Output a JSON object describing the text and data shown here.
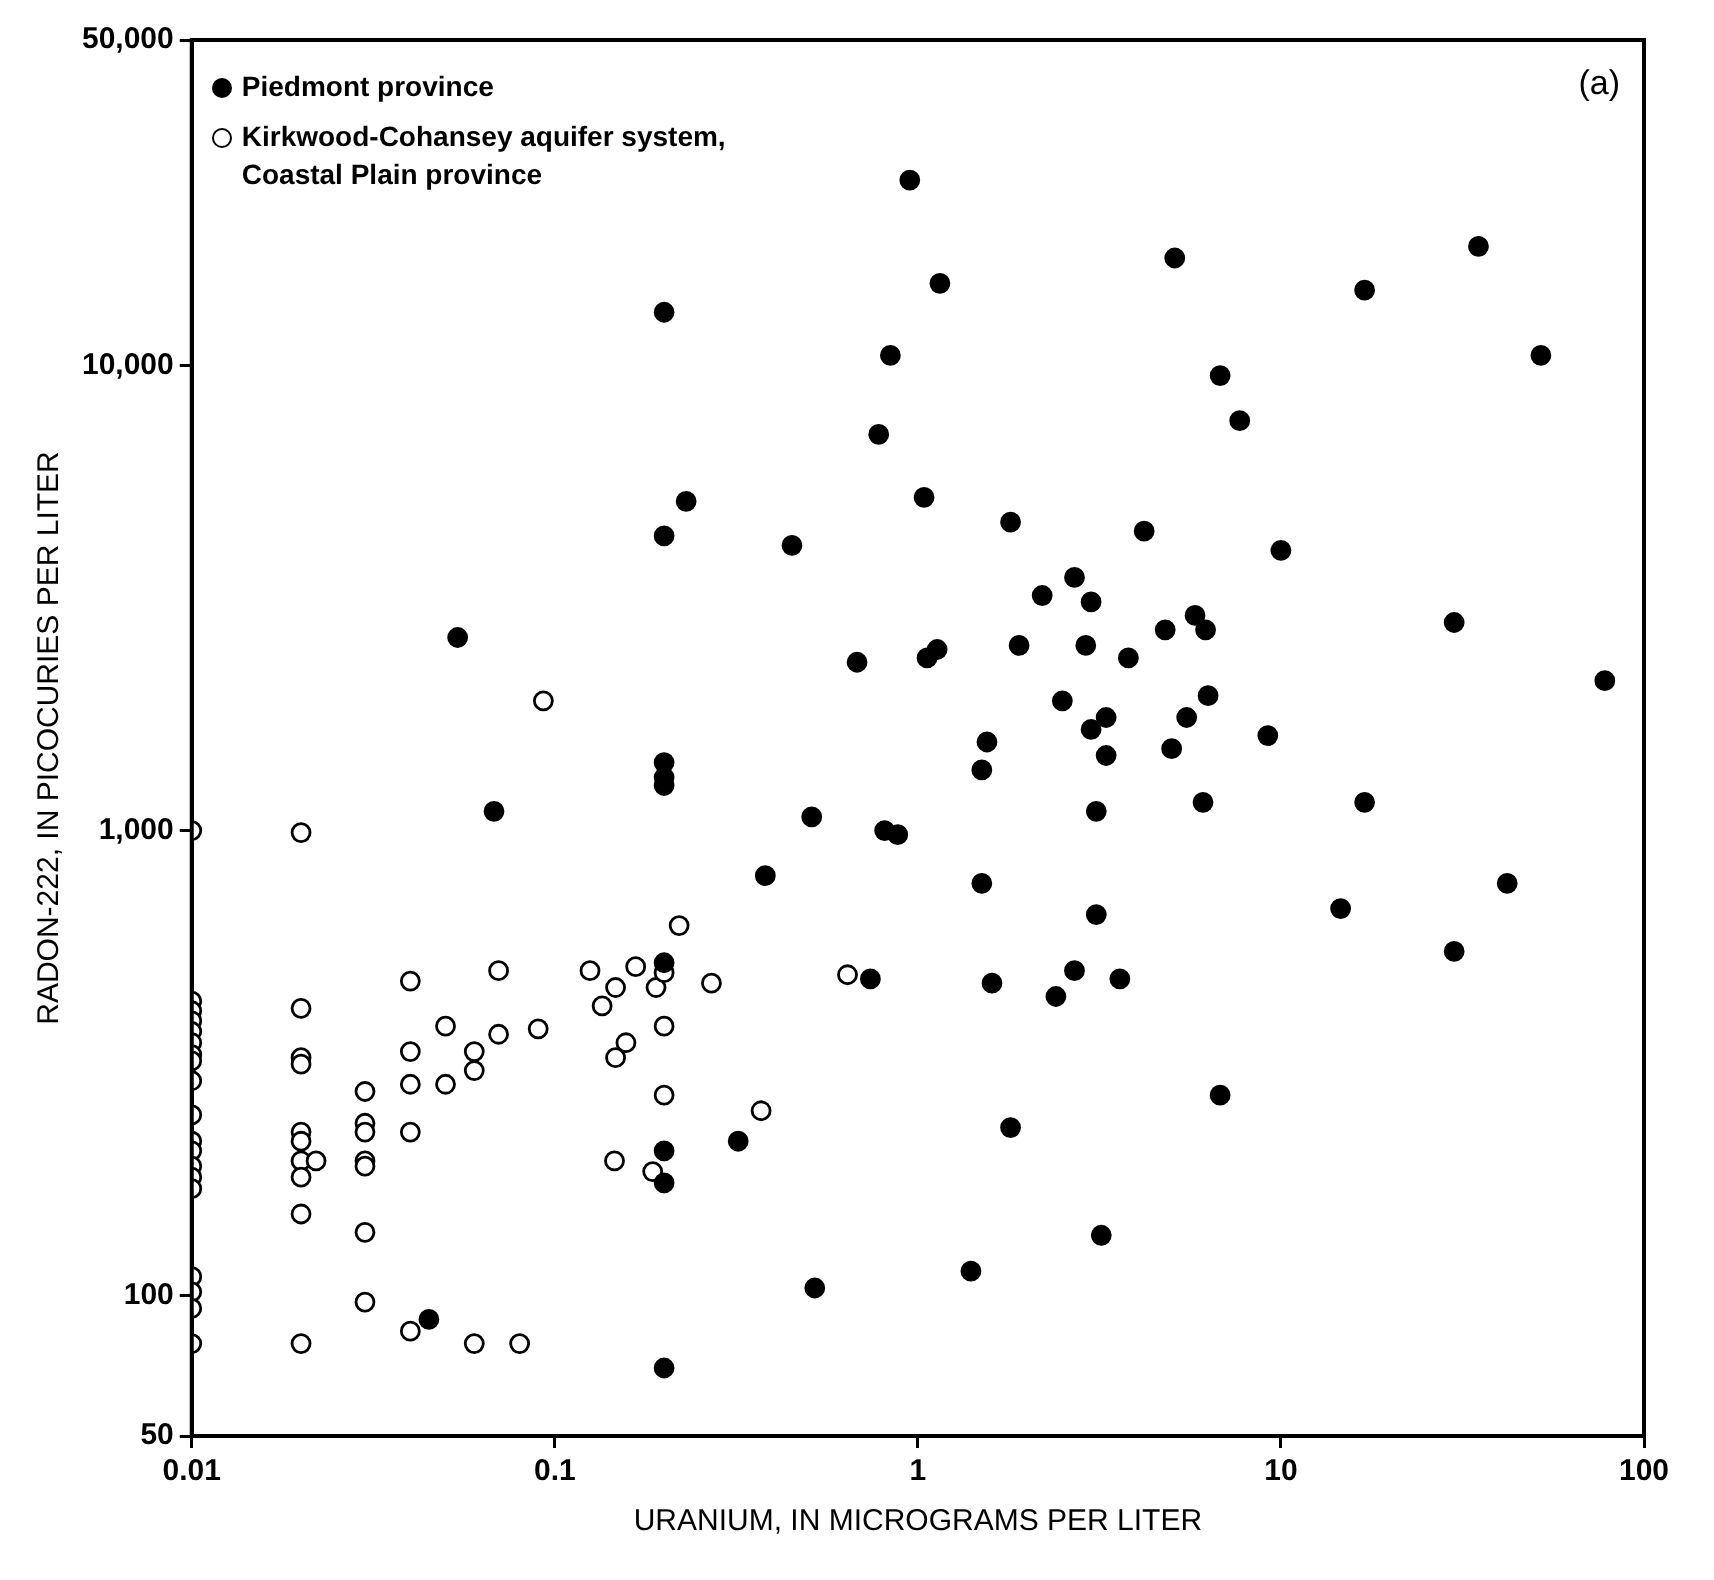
{
  "chart_data": {
    "type": "scatter",
    "xlabel": "URANIUM, IN MICROGRAMS PER LITER",
    "ylabel": "RADON-222, IN PICOCURIES PER LITER",
    "annotations": [
      "(a)"
    ],
    "log": "xy",
    "grid": false,
    "legend": "top left",
    "marker": "circle",
    "xlim": [
      0.01,
      100
    ],
    "xticks": [
      0.01,
      0.1,
      1,
      10,
      100
    ],
    "ylim": [
      50,
      50000
    ],
    "yticks": [
      50,
      100,
      {
        "value": 1000,
        "label": "1,000"
      },
      {
        "value": 10000,
        "label": "10,000"
      },
      {
        "value": 50000,
        "label": "50,000"
      }
    ],
    "series": [
      {
        "name": "Piedmont province",
        "color": "#000000",
        "x": [
          0.2,
          0.23,
          0.2,
          0.45,
          0.054,
          0.68,
          0.2,
          0.2,
          0.2,
          0.95,
          5.1,
          35,
          1.15,
          17,
          0.84,
          52,
          6.8,
          7.7,
          0.78,
          1.04,
          1.8,
          4.2,
          10,
          2.7,
          2.2,
          3,
          30,
          5.8,
          4.8,
          6.2,
          1.06,
          1.13,
          1.9,
          2.9,
          3.8,
          78,
          2.5,
          3.3,
          3,
          6.3,
          5.5,
          9.2,
          1.55,
          1.5,
          3.3,
          5,
          6.1,
          17,
          3.1,
          0.81,
          0.88,
          1.5,
          42,
          14.6,
          3.1,
          30,
          0.74,
          2.7,
          3.6,
          1.6,
          2.4,
          6.8,
          1.8,
          3.2,
          1.4,
          0.068,
          0.51,
          0.38,
          0.2,
          0.2,
          0.32,
          0.2,
          0.52,
          0.045,
          0.2
        ],
        "values": [
          13000,
          5100,
          4300,
          4100,
          2600,
          2300,
          1400,
          1300,
          1250,
          25000,
          17000,
          18000,
          15000,
          14500,
          10500,
          10500,
          9500,
          7600,
          7100,
          5200,
          4600,
          4400,
          4000,
          3500,
          3200,
          3100,
          2800,
          2900,
          2700,
          2700,
          2350,
          2450,
          2500,
          2500,
          2350,
          2100,
          1900,
          1750,
          1650,
          1950,
          1750,
          1600,
          1550,
          1350,
          1450,
          1500,
          1150,
          1150,
          1100,
          1000,
          980,
          770,
          770,
          680,
          660,
          550,
          480,
          500,
          480,
          470,
          440,
          270,
          230,
          135,
          113,
          1100,
          1070,
          800,
          520,
          205,
          215,
          175,
          104,
          89,
          70
        ]
      },
      {
        "name": "Kirkwood-Cohansey aquifer system, Coastal Plain province",
        "color": "#000000",
        "x": [
          0.093,
          0.64,
          0.01,
          0.01,
          0.01,
          0.01,
          0.01,
          0.01,
          0.01,
          0.01,
          0.01,
          0.01,
          0.01,
          0.01,
          0.01,
          0.01,
          0.01,
          0.01,
          0.01,
          0.01,
          0.01,
          0.02,
          0.02,
          0.02,
          0.02,
          0.02,
          0.02,
          0.02,
          0.02,
          0.02,
          0.02,
          0.022,
          0.03,
          0.03,
          0.03,
          0.03,
          0.03,
          0.03,
          0.03,
          0.04,
          0.04,
          0.04,
          0.04,
          0.04,
          0.05,
          0.05,
          0.06,
          0.06,
          0.07,
          0.07,
          0.06,
          0.08,
          0.09,
          0.125,
          0.135,
          0.147,
          0.167,
          0.19,
          0.2,
          0.22,
          0.27,
          0.157,
          0.147,
          0.2,
          0.2,
          0.37,
          0.146,
          0.186
        ],
        "values": [
          1900,
          490,
          1000,
          430,
          410,
          390,
          370,
          350,
          330,
          320,
          290,
          245,
          215,
          205,
          190,
          180,
          170,
          110,
          102,
          94,
          79,
          990,
          415,
          325,
          315,
          225,
          215,
          195,
          180,
          150,
          79,
          195,
          275,
          235,
          225,
          195,
          190,
          137,
          97,
          475,
          335,
          285,
          225,
          84,
          380,
          285,
          335,
          305,
          500,
          365,
          79,
          79,
          375,
          500,
          420,
          460,
          510,
          460,
          495,
          625,
          470,
          350,
          325,
          380,
          270,
          250,
          195,
          185
        ]
      }
    ]
  }
}
